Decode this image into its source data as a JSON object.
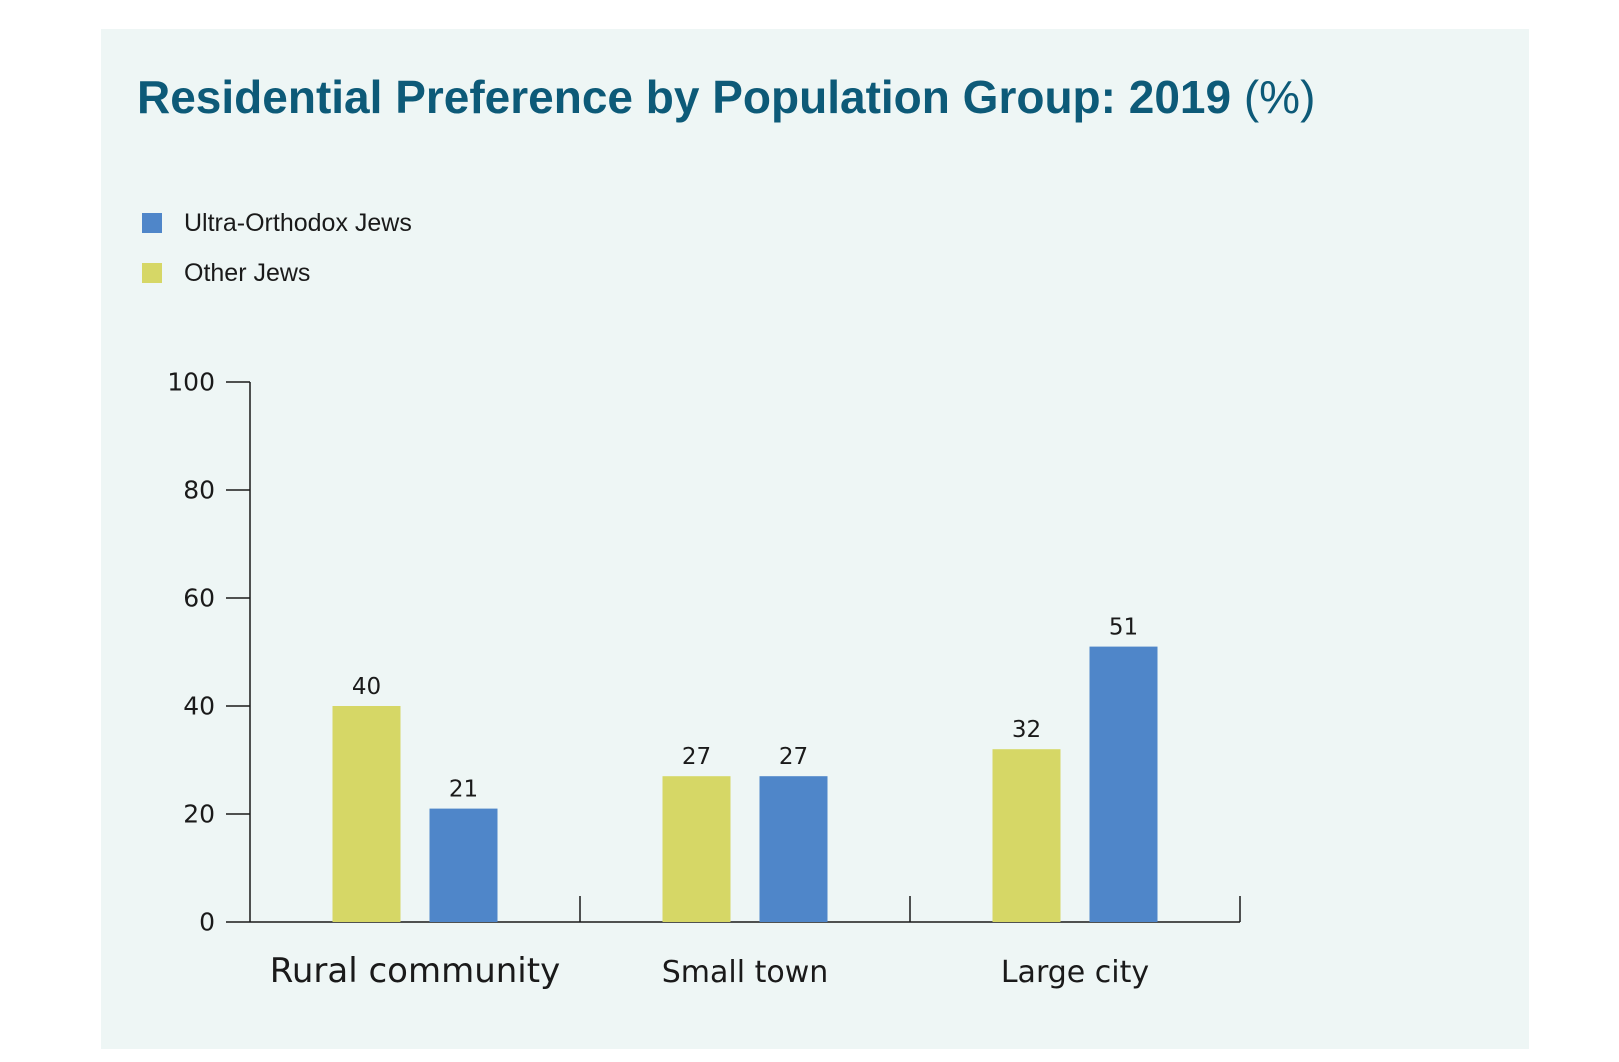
{
  "chart_data": {
    "type": "bar",
    "title": "Residential Preference by Population Group: 2019",
    "title_unit": "(%)",
    "categories": [
      "Rural community",
      "Small town",
      "Large city"
    ],
    "series": [
      {
        "name": "Other Jews",
        "color": "#d6d766",
        "values": [
          40,
          27,
          32
        ]
      },
      {
        "name": "Ultra-Orthodox Jews",
        "color": "#4f86c9",
        "values": [
          21,
          27,
          51
        ]
      }
    ],
    "legend_order": [
      "Ultra-Orthodox Jews",
      "Other Jews"
    ],
    "legend_colors": {
      "Ultra-Orthodox Jews": "#4f86c9",
      "Other Jews": "#d6d766"
    },
    "ylim": [
      0,
      100
    ],
    "yticks": [
      0,
      20,
      40,
      60,
      80,
      100
    ],
    "xlabel": "",
    "ylabel": "",
    "grid": false,
    "legend_position": "top-left",
    "background": "#eef6f5",
    "title_color": "#0d5a78"
  }
}
